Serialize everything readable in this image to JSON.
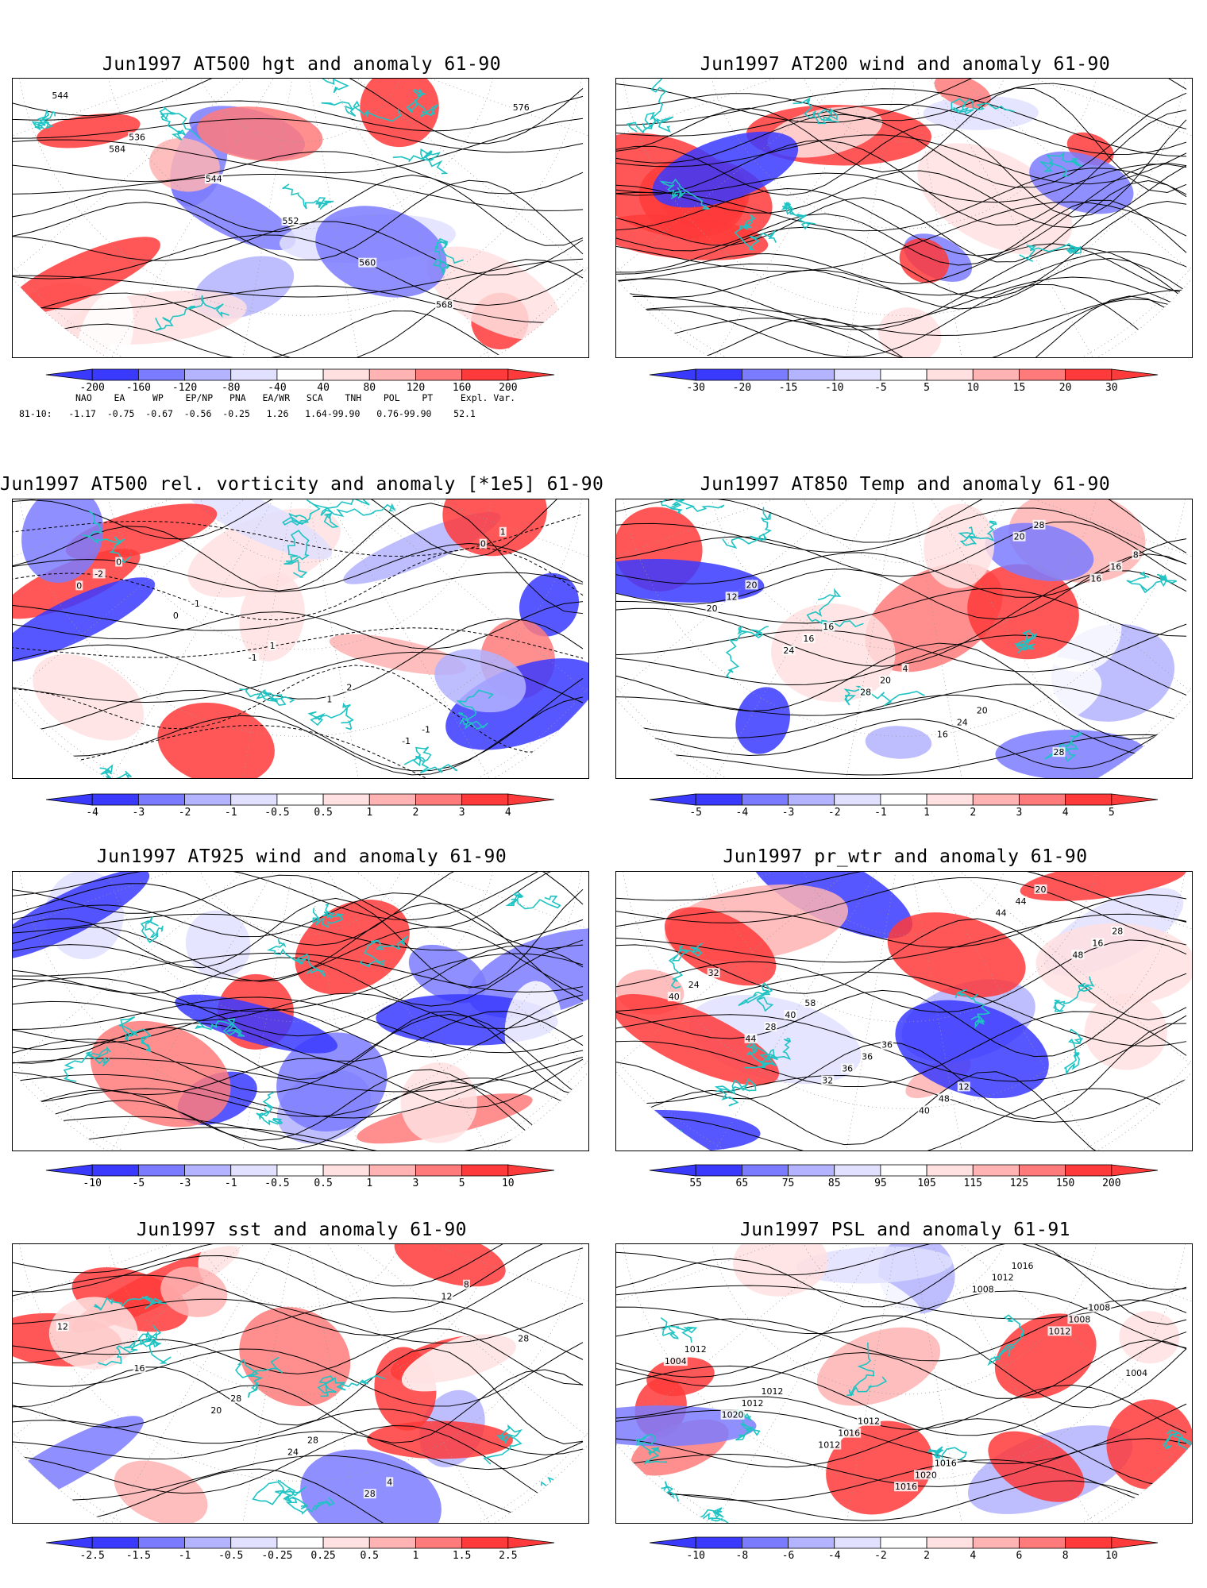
{
  "panels": [
    {
      "id": "p1",
      "title": "Jun1997 AT500 hgt and anomaly 61-90",
      "kind": "hgt",
      "labels": [
        "544",
        "536",
        "544",
        "552",
        "560",
        "568",
        "576",
        "584"
      ],
      "colorbar": [
        "-200",
        "-160",
        "-120",
        "-80",
        "-40",
        "40",
        "80",
        "120",
        "160",
        "200"
      ]
    },
    {
      "id": "p2",
      "title": "Jun1997 AT200 wind and anomaly 61-90",
      "kind": "stream",
      "labels": [],
      "colorbar": [
        "-30",
        "-20",
        "-15",
        "-10",
        "-5",
        "5",
        "10",
        "15",
        "20",
        "30"
      ]
    },
    {
      "id": "p3",
      "title": "Jun1997 AT500 rel. vorticity and anomaly [*1e5] 61-90",
      "kind": "vort",
      "labels": [
        "0",
        "-1",
        "1",
        "2",
        "-1",
        "1",
        "-2",
        "0",
        "-1",
        "1",
        "-1",
        "0",
        "0"
      ],
      "colorbar": [
        "-4",
        "-3",
        "-2",
        "-1",
        "-0.5",
        "0.5",
        "1",
        "2",
        "3",
        "4"
      ]
    },
    {
      "id": "p4",
      "title": "Jun1997 AT850 Temp and anomaly 61-90",
      "kind": "temp",
      "labels": [
        "20",
        "16",
        "4",
        "20",
        "28",
        "8",
        "12",
        "16",
        "20",
        "24",
        "28",
        "16",
        "20",
        "24",
        "28",
        "16",
        "20",
        "16"
      ],
      "colorbar": [
        "-5",
        "-4",
        "-3",
        "-2",
        "-1",
        "1",
        "2",
        "3",
        "4",
        "5"
      ]
    },
    {
      "id": "p5",
      "title": "Jun1997 AT925 wind and anomaly 61-90",
      "kind": "stream",
      "labels": [],
      "colorbar": [
        "-10",
        "-5",
        "-3",
        "-1",
        "-0.5",
        "0.5",
        "1",
        "3",
        "5",
        "10"
      ]
    },
    {
      "id": "p6",
      "title": "Jun1997 pr_wtr and anomaly 61-90",
      "kind": "prwtr",
      "labels": [
        "58",
        "36",
        "12",
        "20",
        "28",
        "32",
        "40",
        "36",
        "48",
        "44",
        "16",
        "24",
        "28",
        "36",
        "40",
        "44",
        "48",
        "40",
        "44",
        "32"
      ],
      "colorbar": [
        "55",
        "65",
        "75",
        "85",
        "95",
        "105",
        "115",
        "125",
        "150",
        "200"
      ]
    },
    {
      "id": "p7",
      "title": "Jun1997 sst and anomaly 61-90",
      "kind": "sst",
      "labels": [
        "28",
        "28",
        "4",
        "8",
        "12",
        "16",
        "20",
        "24",
        "28",
        "12",
        "28"
      ],
      "colorbar": [
        "-2.5",
        "-1.5",
        "-1",
        "-0.5",
        "-0.25",
        "0.25",
        "0.5",
        "1",
        "1.5",
        "2.5"
      ]
    },
    {
      "id": "p8",
      "title": "Jun1997 PSL and anomaly 61-91",
      "kind": "psl",
      "labels": [
        "1012",
        "1016",
        "1016",
        "1008",
        "1012",
        "1012",
        "1016",
        "1020",
        "1012",
        "1008",
        "1004",
        "1012",
        "1012",
        "1016",
        "1008",
        "1012",
        "1004",
        "1020"
      ],
      "colorbar": [
        "-10",
        "-8",
        "-6",
        "-4",
        "-2",
        "2",
        "4",
        "6",
        "8",
        "10"
      ]
    }
  ],
  "teleconnections": {
    "header": [
      "NAO",
      "EA",
      "WP",
      "EP/NP",
      "PNA",
      "EA/WR",
      "SCA",
      "TNH",
      "POL",
      "PT",
      "Expl. Var."
    ],
    "row_label": "81-10:",
    "values": [
      "-1.17",
      "-0.75",
      "-0.67",
      "-0.56",
      "-0.25",
      "1.26",
      "1.64-99.90",
      "0.76-99.90",
      "52.1"
    ]
  },
  "colors": {
    "coast": "#1fc3c3",
    "blue_dark": "#3a3aff",
    "blue_mid": "#7b7bff",
    "blue_light": "#b3b3ff",
    "blue_pale": "#e1e1ff",
    "red_pale": "#ffe1e1",
    "red_light": "#ffb3b3",
    "red_mid": "#ff7b7b",
    "red_dark": "#ff3a3a"
  }
}
